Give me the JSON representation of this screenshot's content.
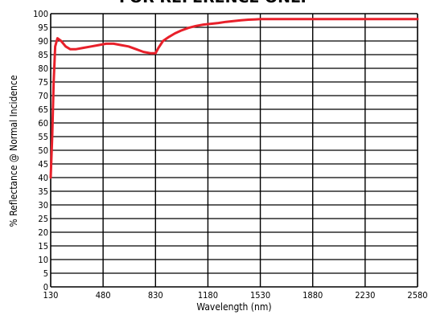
{
  "chart_data": {
    "type": "line",
    "title": "FOR REFERENCE ONLY",
    "xlabel": "Wavelength (nm)",
    "ylabel": "% Reflectance @ Normal Incidence",
    "xlim": [
      130,
      2580
    ],
    "ylim": [
      0,
      100
    ],
    "x_ticks": [
      130,
      480,
      830,
      1180,
      1530,
      1880,
      2230,
      2580
    ],
    "y_ticks": [
      0,
      5,
      10,
      15,
      20,
      25,
      30,
      35,
      40,
      45,
      50,
      55,
      60,
      65,
      70,
      75,
      80,
      85,
      90,
      95,
      100
    ],
    "grid": true,
    "line_color": "#e8202a",
    "series": [
      {
        "x": [
          130,
          140,
          150,
          160,
          175,
          200,
          230,
          260,
          300,
          350,
          400,
          450,
          500,
          550,
          600,
          650,
          700,
          750,
          800,
          830,
          850,
          880,
          920,
          960,
          1000,
          1050,
          1100,
          1150,
          1200,
          1250,
          1300,
          1350,
          1400,
          1450,
          1500,
          1530,
          1600,
          1700,
          1800,
          1900,
          2000,
          2100,
          2200,
          2300,
          2400,
          2500,
          2580
        ],
        "y": [
          40,
          55,
          75,
          88,
          91,
          90,
          88,
          87,
          87,
          87.5,
          88,
          88.5,
          89,
          89,
          88.5,
          88,
          87,
          86,
          85.5,
          85.5,
          87.5,
          90,
          91.5,
          92.8,
          93.8,
          94.8,
          95.5,
          96,
          96.3,
          96.6,
          97,
          97.3,
          97.6,
          97.8,
          97.9,
          98,
          98,
          98,
          98,
          98,
          98,
          98,
          98,
          98,
          98,
          98,
          98
        ]
      }
    ]
  }
}
